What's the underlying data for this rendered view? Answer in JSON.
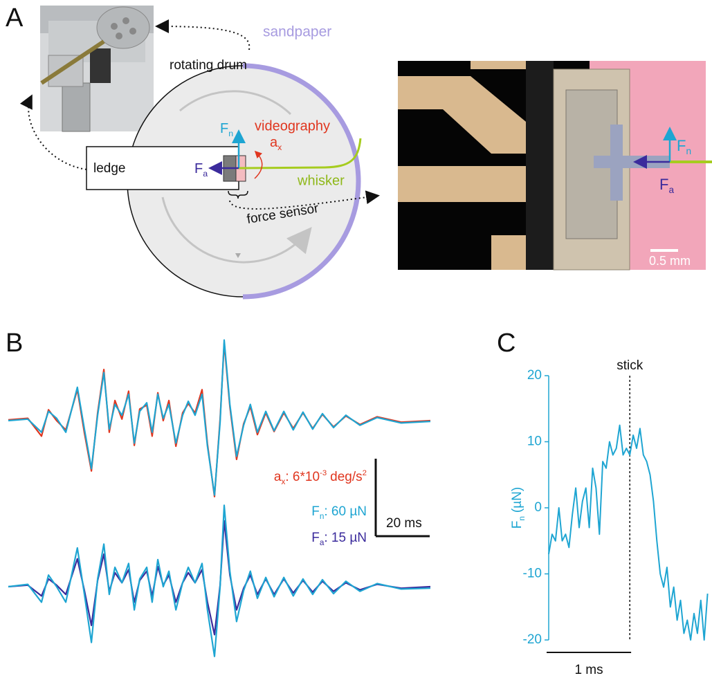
{
  "figure": {
    "panel_labels": [
      "A",
      "B",
      "C"
    ],
    "diagram": {
      "sandpaper": "sandpaper",
      "rotating_drum": "rotating drum",
      "videography": "videography",
      "ax": {
        "main": "a",
        "sub": "x"
      },
      "fn": {
        "main": "F",
        "sub": "n"
      },
      "fa": {
        "main": "F",
        "sub": "a"
      },
      "ledge": "ledge",
      "whisker": "whisker",
      "force_sensor": "force sensor"
    },
    "micrograph": {
      "fn": {
        "main": "F",
        "sub": "n"
      },
      "fa": {
        "main": "F",
        "sub": "a"
      },
      "scale_bar": "0.5 mm"
    }
  },
  "chart_data": [
    {
      "type": "traces",
      "x": [
        0,
        7.2,
        12.3,
        14.9,
        17.9,
        21.3,
        25.6,
        28.2,
        30.8,
        33.1,
        35.4,
        37.4,
        39.5,
        42.1,
        44.6,
        46.7,
        48.7,
        51.3,
        53.3,
        55.4,
        57.4,
        59.5,
        62.1,
        64.6,
        66.7,
        69.2,
        71.8,
        73.8,
        76.4,
        78.5,
        80,
        82.1,
        84.6,
        87.2,
        89.7,
        92.3,
        95.4,
        98.5,
        102.1,
        105.6,
        109.2,
        112.8,
        116.4,
        120.5,
        125.1,
        130.3,
        136.7,
        145.6,
        156.4
      ],
      "upper_series": [
        {
          "color": "#e0361f",
          "values": [
            0.01,
            0.03,
            -0.2,
            0.14,
            0.0,
            -0.12,
            0.4,
            -0.16,
            -0.65,
            0.1,
            0.66,
            -0.15,
            0.26,
            0.02,
            0.38,
            -0.32,
            0.15,
            0.2,
            -0.2,
            0.36,
            0.0,
            0.26,
            -0.33,
            0.1,
            0.22,
            0.1,
            0.4,
            -0.3,
            -0.98,
            0.02,
            1.0,
            0.18,
            -0.5,
            -0.04,
            0.18,
            -0.18,
            0.1,
            -0.14,
            0.1,
            -0.1,
            0.1,
            -0.1,
            0.08,
            -0.08,
            0.06,
            -0.05,
            0.05,
            -0.02,
            0.0
          ]
        },
        {
          "color": "#1ea5d2",
          "values": [
            0,
            0.02,
            -0.15,
            0.12,
            0.03,
            -0.15,
            0.43,
            -0.11,
            -0.62,
            0.07,
            0.62,
            -0.11,
            0.21,
            0.07,
            0.34,
            -0.29,
            0.12,
            0.23,
            -0.15,
            0.34,
            0.03,
            0.21,
            -0.29,
            0.07,
            0.25,
            0.07,
            0.34,
            -0.33,
            -0.96,
            -0.02,
            1.04,
            0.21,
            -0.46,
            -0.06,
            0.21,
            -0.15,
            0.12,
            -0.13,
            0.12,
            -0.12,
            0.11,
            -0.11,
            0.09,
            -0.09,
            0.07,
            -0.06,
            0.04,
            -0.03,
            -0.01
          ]
        }
      ],
      "lower_series": [
        {
          "color": "#3b2b9c",
          "values": [
            0,
            0.02,
            -0.12,
            0.1,
            0.02,
            -0.1,
            0.36,
            -0.05,
            -0.5,
            0.08,
            0.42,
            -0.06,
            0.18,
            0.05,
            0.22,
            -0.2,
            0.08,
            0.2,
            -0.12,
            0.26,
            0.02,
            0.15,
            -0.2,
            0.05,
            0.18,
            0.05,
            0.22,
            -0.2,
            -0.62,
            0.02,
            0.85,
            0.15,
            -0.3,
            -0.02,
            0.15,
            -0.1,
            0.1,
            -0.1,
            0.1,
            -0.08,
            0.08,
            -0.07,
            0.07,
            -0.06,
            0.05,
            -0.04,
            0.03,
            -0.02,
            0.0
          ]
        },
        {
          "color": "#1ea5d2",
          "values": [
            0,
            0.03,
            -0.2,
            0.15,
            0.0,
            -0.2,
            0.5,
            -0.1,
            -0.72,
            0.1,
            0.55,
            -0.1,
            0.25,
            0.05,
            0.3,
            -0.3,
            0.1,
            0.25,
            -0.2,
            0.35,
            0.0,
            0.2,
            -0.3,
            0.05,
            0.25,
            0.05,
            0.3,
            -0.3,
            -0.9,
            0.0,
            1.05,
            0.2,
            -0.45,
            -0.05,
            0.2,
            -0.15,
            0.12,
            -0.13,
            0.12,
            -0.12,
            0.1,
            -0.1,
            0.09,
            -0.09,
            0.07,
            -0.06,
            0.04,
            -0.03,
            -0.02
          ]
        }
      ],
      "scale_labels": [
        {
          "main": "a",
          "sub": "x",
          "text": ": 6*10",
          "sup": "-3",
          "unit": "deg/s",
          "unit_sup": "2",
          "color": "#e0361f"
        },
        {
          "main": "F",
          "sub": "n",
          "text": ": 60 µN",
          "color": "#1ea5d2"
        },
        {
          "main": "F",
          "sub": "a",
          "text": ": 15 µN",
          "color": "#3b2b9c"
        }
      ],
      "y_scale_bar": 1,
      "time_scale_bar": {
        "value": 20,
        "label": "20 ms"
      }
    },
    {
      "type": "line",
      "x": [
        0,
        0.04,
        0.08,
        0.12,
        0.16,
        0.2,
        0.24,
        0.28,
        0.32,
        0.36,
        0.4,
        0.44,
        0.48,
        0.52,
        0.56,
        0.6,
        0.64,
        0.68,
        0.72,
        0.76,
        0.8,
        0.84,
        0.88,
        0.92,
        0.96,
        1.0,
        1.04,
        1.08,
        1.12,
        1.16,
        1.2,
        1.24,
        1.28,
        1.32,
        1.36,
        1.4,
        1.44,
        1.48,
        1.52,
        1.56,
        1.6,
        1.64,
        1.68,
        1.72,
        1.76,
        1.8,
        1.84,
        1.88
      ],
      "values": [
        -7,
        -4,
        -5,
        0,
        -5,
        -4,
        -6,
        -1,
        3,
        -3,
        1,
        3,
        -3,
        6,
        3,
        -4,
        7,
        6,
        10,
        8,
        9,
        12.5,
        8,
        9,
        8,
        11,
        9,
        12,
        8,
        7,
        5,
        1,
        -5,
        -10,
        -12,
        -9,
        -15,
        -12,
        -17,
        -14,
        -19,
        -17,
        -20,
        -16,
        -19,
        -14,
        -20,
        -13
      ],
      "color": "#1ea5d2",
      "xlim": [
        0,
        1.9
      ],
      "ylim": [
        -20,
        20
      ],
      "yticks": [
        -20,
        -10,
        0,
        10,
        20
      ],
      "y_label": {
        "main": "F",
        "sub": "n",
        "unit": "(µN)"
      },
      "annotation": {
        "label": "stick",
        "x": 0.96
      },
      "time_scale_bar": {
        "value": 1,
        "label": "1 ms"
      }
    }
  ]
}
